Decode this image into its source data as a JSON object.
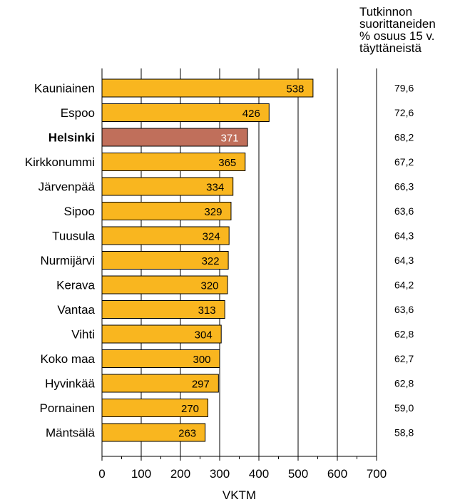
{
  "chart_data": {
    "type": "bar",
    "orientation": "horizontal",
    "categories": [
      "Kauniainen",
      "Espoo",
      "Helsinki",
      "Kirkkonummi",
      "Järvenpää",
      "Sipoo",
      "Tuusula",
      "Nurmijärvi",
      "Kerava",
      "Vantaa",
      "Vihti",
      "Koko maa",
      "Hyvinkää",
      "Pornainen",
      "Mäntsälä"
    ],
    "values": [
      538,
      426,
      371,
      365,
      334,
      329,
      324,
      322,
      320,
      313,
      304,
      300,
      297,
      270,
      263
    ],
    "value_labels": [
      "538",
      "426",
      "371",
      "365",
      "334",
      "329",
      "324",
      "322",
      "320",
      "313",
      "304",
      "300",
      "297",
      "270",
      "263"
    ],
    "side_values": [
      "79,6",
      "72,6",
      "68,2",
      "67,2",
      "66,3",
      "63,6",
      "64,3",
      "64,3",
      "64,2",
      "63,6",
      "62,8",
      "62,7",
      "62,8",
      "59,0",
      "58,8"
    ],
    "side_title": "Tutkinnon\nsuorittaneiden\n% osuus 15 v.\ntäyttäneistä",
    "highlight_category": "Helsinki",
    "xlabel": "VKTM",
    "xlim": [
      0,
      700
    ],
    "xticks": [
      0,
      100,
      200,
      300,
      400,
      500,
      600,
      700
    ],
    "grid": "vertical",
    "colors": {
      "bar": "#f9b61f",
      "highlight_bar": "#c06f5b",
      "bar_edge": "#000000",
      "highlight_label": "#ffffff",
      "label": "#000000"
    }
  }
}
